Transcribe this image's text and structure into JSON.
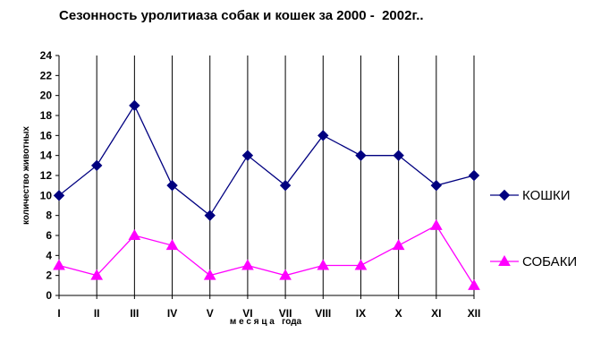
{
  "chart_data": {
    "type": "line",
    "title": "Сезонность уролитиаза собак и кошек за 2000 -  2002г..",
    "xlabel": "м е с я ц а   года",
    "ylabel": "количество животных",
    "categories": [
      "I",
      "II",
      "III",
      "IV",
      "V",
      "VI",
      "VII",
      "VIII",
      "IX",
      "X",
      "XI",
      "XII"
    ],
    "ylim": [
      0,
      24
    ],
    "yticks": [
      0,
      2,
      4,
      6,
      8,
      10,
      12,
      14,
      16,
      18,
      20,
      22,
      24
    ],
    "grid": "vertical",
    "legend_position": "right",
    "series": [
      {
        "name": "КОШКИ",
        "marker": "diamond",
        "color": "#000080",
        "values": [
          10,
          13,
          19,
          11,
          8,
          14,
          11,
          16,
          14,
          14,
          11,
          12
        ]
      },
      {
        "name": "СОБАКИ",
        "marker": "triangle",
        "color": "#ff00ff",
        "values": [
          3,
          2,
          6,
          5,
          2,
          3,
          2,
          3,
          3,
          5,
          7,
          1
        ]
      }
    ]
  }
}
